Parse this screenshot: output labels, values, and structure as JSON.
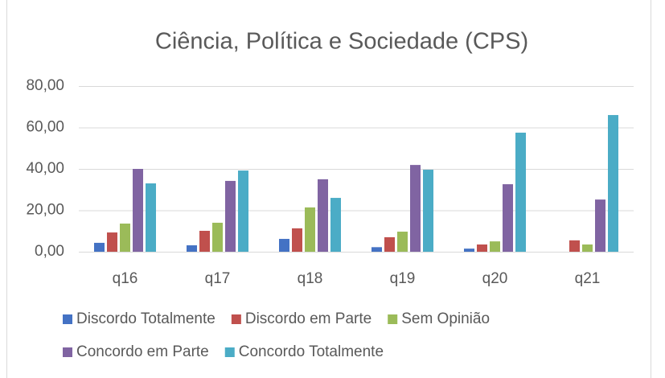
{
  "chart_data": {
    "type": "bar",
    "title": "Ciência, Política e Sociedade (CPS)",
    "categories": [
      "q16",
      "q17",
      "q18",
      "q19",
      "q20",
      "q21"
    ],
    "series": [
      {
        "name": "Discordo Totalmente",
        "color": "#4472c4",
        "values": [
          4.3,
          3.1,
          6.2,
          2.2,
          1.5,
          0
        ]
      },
      {
        "name": "Discordo em Parte",
        "color": "#c0504d",
        "values": [
          9.3,
          10.1,
          11.3,
          7.0,
          3.5,
          5.5
        ]
      },
      {
        "name": "Sem Opinião",
        "color": "#9bbb59",
        "values": [
          13.6,
          14.0,
          21.4,
          9.7,
          5.0,
          3.5
        ]
      },
      {
        "name": "Concordo em Parte",
        "color": "#8064a2",
        "values": [
          40.0,
          34.2,
          35.0,
          41.9,
          32.6,
          25.2
        ]
      },
      {
        "name": "Concordo Totalmente",
        "color": "#4bacc6",
        "values": [
          33.0,
          39.2,
          26.0,
          39.6,
          57.5,
          66.0
        ]
      }
    ],
    "ylim": [
      0,
      80
    ],
    "yticks": [
      {
        "value": 0,
        "label": "0,00"
      },
      {
        "value": 20,
        "label": "20,00"
      },
      {
        "value": 40,
        "label": "40,00"
      },
      {
        "value": 60,
        "label": "60,00"
      },
      {
        "value": 80,
        "label": "80,00"
      }
    ],
    "grid": true,
    "legend": "bottom"
  }
}
